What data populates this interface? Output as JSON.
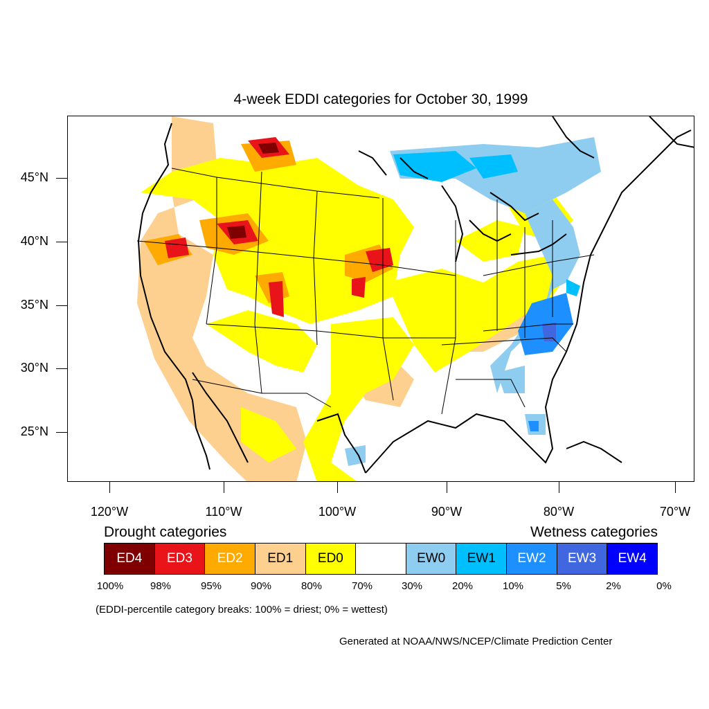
{
  "title": "4-week EDDI categories for October 30, 1999",
  "map": {
    "lat_labels": [
      "45°N",
      "40°N",
      "35°N",
      "30°N",
      "25°N"
    ],
    "lon_labels": [
      "120°W",
      "110°W",
      "100°W",
      "90°W",
      "80°W",
      "70°W"
    ],
    "lat_values": [
      45,
      40,
      35,
      30,
      25
    ],
    "lon_values": [
      -120,
      -110,
      -100,
      -90,
      -80,
      -70
    ]
  },
  "legend": {
    "drought_heading": "Drought categories",
    "wetness_heading": "Wetness categories",
    "categories": [
      {
        "label": "ED4",
        "color": "#7f0000",
        "text_color": "#ffffff"
      },
      {
        "label": "ED3",
        "color": "#e8141a",
        "text_color": "#ffffff"
      },
      {
        "label": "ED2",
        "color": "#ffaa00",
        "text_color": "#ffffff"
      },
      {
        "label": "ED1",
        "color": "#fed08f",
        "text_color": "#000000"
      },
      {
        "label": "ED0",
        "color": "#ffff00",
        "text_color": "#000000"
      },
      {
        "label": "",
        "color": "#ffffff",
        "text_color": "#000000"
      },
      {
        "label": "EW0",
        "color": "#8fcdf0",
        "text_color": "#000000"
      },
      {
        "label": "EW1",
        "color": "#00bfff",
        "text_color": "#000000"
      },
      {
        "label": "EW2",
        "color": "#1e8fff",
        "text_color": "#ffffff"
      },
      {
        "label": "EW3",
        "color": "#4066e0",
        "text_color": "#ffffff"
      },
      {
        "label": "EW4",
        "color": "#0000ff",
        "text_color": "#ffffff"
      }
    ],
    "breaks": [
      "100%",
      "98%",
      "95%",
      "90%",
      "80%",
      "70%",
      "30%",
      "20%",
      "10%",
      "5%",
      "2%",
      "0%"
    ]
  },
  "breaks_note": "(EDDI-percentile category breaks: 100% = driest; 0% = wettest)",
  "credit": "Generated at NOAA/NWS/NCEP/Climate Prediction Center"
}
